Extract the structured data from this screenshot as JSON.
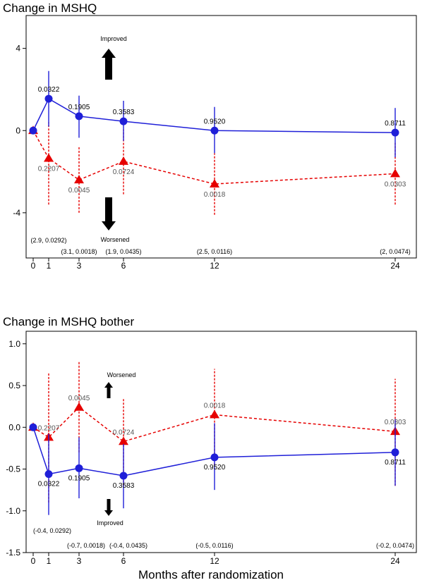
{
  "colors": {
    "series1": "#1f1fd8",
    "series2": "#e60000",
    "arrow": "#000000",
    "pvalue_series1": "#000000",
    "pvalue_series2": "#555555"
  },
  "x_axis_label": "Months after randomization",
  "chart_data": [
    {
      "type": "line",
      "title": "Change in MSHQ",
      "xlabel": "",
      "ylabel": "",
      "x": [
        0,
        1,
        3,
        6,
        12,
        24
      ],
      "x_ticks": [
        "0",
        "1",
        "3",
        "6",
        "12",
        "24"
      ],
      "ylim": [
        -6.2,
        5.6
      ],
      "y_ticks": [
        -4,
        0,
        4
      ],
      "grid": false,
      "series": [
        {
          "style": "solid",
          "marker": "circle",
          "color": "#1f1fd8",
          "y": [
            0,
            1.55,
            0.7,
            0.45,
            0.0,
            -0.1
          ],
          "err_low": [
            0,
            0.2,
            -0.35,
            -0.5,
            -1.1,
            -1.3
          ],
          "err_high": [
            0,
            2.9,
            1.7,
            1.45,
            1.15,
            1.1
          ],
          "labels": [
            "",
            "0.0322",
            "0.1905",
            "0.3583",
            "0.9520",
            "0.8711"
          ]
        },
        {
          "style": "dashed",
          "marker": "triangle",
          "color": "#e60000",
          "y": [
            0,
            -1.35,
            -2.4,
            -1.5,
            -2.6,
            -2.1
          ],
          "err_low": [
            0,
            -3.6,
            -4.0,
            -3.1,
            -4.1,
            -3.6
          ],
          "err_high": [
            0,
            0.4,
            -0.8,
            0.05,
            -1.1,
            -0.6
          ],
          "labels": [
            "",
            "0.2207",
            "0.0045",
            "0.0724",
            "0.0018",
            "0.0303"
          ]
        }
      ],
      "annotations": {
        "up_arrow": "Improved",
        "down_arrow": "Worsened",
        "bottom_labels": [
          "(2.9, 0.0292)",
          "(3.1, 0.0018)",
          "(1.9, 0.0435)",
          "(2.5, 0.0116)",
          "(2, 0.0474)"
        ]
      }
    },
    {
      "type": "line",
      "title": "Change in MSHQ bother",
      "xlabel": "Months after randomization",
      "ylabel": "",
      "x": [
        0,
        1,
        3,
        6,
        12,
        24
      ],
      "x_ticks": [
        "0",
        "1",
        "3",
        "6",
        "12",
        "24"
      ],
      "ylim": [
        -1.5,
        1.15
      ],
      "y_ticks": [
        -1.5,
        -1.0,
        -0.5,
        0.0,
        0.5,
        1.0
      ],
      "grid": false,
      "series": [
        {
          "style": "solid",
          "marker": "circle",
          "color": "#1f1fd8",
          "y": [
            0,
            -0.56,
            -0.49,
            -0.58,
            -0.36,
            -0.3
          ],
          "err_low": [
            0,
            -1.05,
            -0.85,
            -0.97,
            -0.75,
            -0.7
          ],
          "err_high": [
            0,
            -0.08,
            -0.12,
            -0.2,
            0.05,
            0.1
          ],
          "labels": [
            "",
            "0.0322",
            "0.1905",
            "0.3583",
            "0.9520",
            "0.8711"
          ]
        },
        {
          "style": "dashed",
          "marker": "triangle",
          "color": "#e60000",
          "y": [
            0,
            -0.12,
            0.24,
            -0.17,
            0.15,
            -0.05
          ],
          "err_low": [
            0,
            -0.9,
            -0.3,
            -0.7,
            -0.45,
            -0.7
          ],
          "err_high": [
            0,
            0.65,
            0.79,
            0.35,
            0.7,
            0.58
          ],
          "labels": [
            "",
            "0.2207",
            "0.0045",
            "0.0724",
            "0.0018",
            "0.0303"
          ]
        }
      ],
      "annotations": {
        "up_arrow": "Worsened",
        "down_arrow": "Improved",
        "bottom_labels": [
          "(-0.4, 0.0292)",
          "(-0.7, 0.0018)",
          "(-0.4, 0.0435)",
          "(-0.5, 0.0116)",
          "(-0.2, 0.0474)"
        ]
      }
    }
  ]
}
